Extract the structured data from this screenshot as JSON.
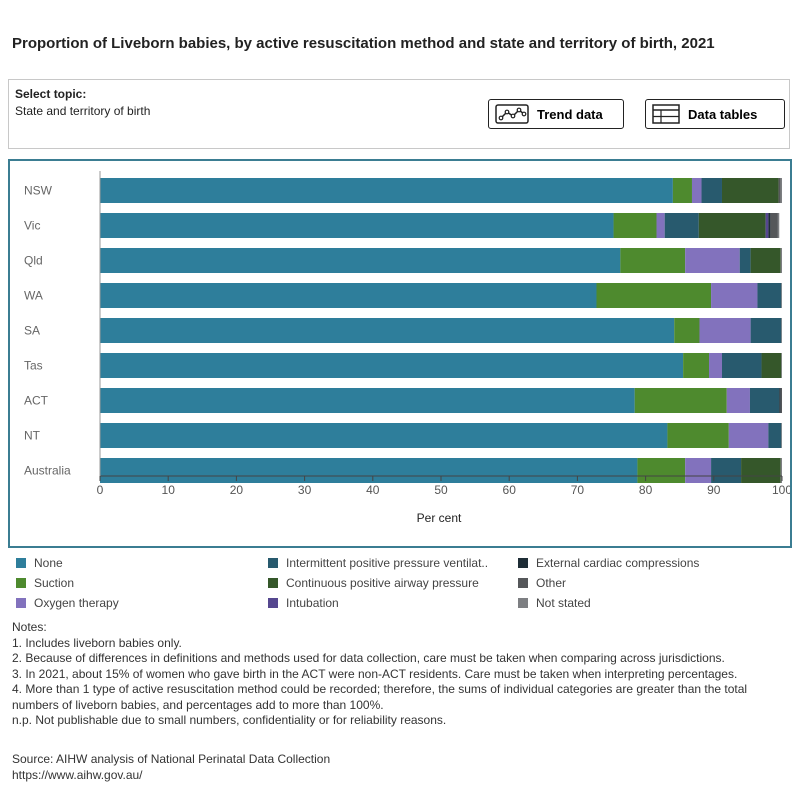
{
  "title": "Proportion of Liveborn babies, by active resuscitation method and state and territory of birth, 2021",
  "topic": {
    "label": "Select topic:",
    "value": "State and territory of birth"
  },
  "buttons": {
    "trend_label": "Trend data",
    "tables_label": "Data tables"
  },
  "chart_data": {
    "type": "bar",
    "orientation": "horizontal",
    "stacked": true,
    "categories": [
      "NSW",
      "Vic",
      "Qld",
      "WA",
      "SA",
      "Tas",
      "ACT",
      "NT",
      "Australia"
    ],
    "xlabel": "Per cent",
    "ylabel": "",
    "xlim": [
      0,
      100
    ],
    "xticks": [
      0,
      10,
      20,
      30,
      40,
      50,
      60,
      70,
      80,
      90,
      100
    ],
    "grid": false,
    "legend_position": "bottom",
    "series": [
      {
        "name": "None",
        "color": "#2e7e9b",
        "values": [
          84.0,
          75.3,
          76.3,
          72.8,
          84.2,
          85.5,
          78.4,
          83.2,
          78.8
        ]
      },
      {
        "name": "Suction",
        "color": "#4e8a2e",
        "values": [
          2.8,
          6.3,
          9.5,
          16.8,
          3.7,
          3.8,
          13.5,
          9.0,
          7.0
        ]
      },
      {
        "name": "Oxygen therapy",
        "color": "#8272bd",
        "values": [
          1.4,
          1.2,
          8.0,
          6.8,
          7.5,
          1.9,
          3.4,
          5.8,
          3.8
        ]
      },
      {
        "name": "Intermittent positive pressure ventilat..",
        "color": "#285a6e",
        "values": [
          3.0,
          5.0,
          1.6,
          3.5,
          4.5,
          5.8,
          4.3,
          1.9,
          4.4
        ]
      },
      {
        "name": "Continuous positive airway pressure",
        "color": "#35572a",
        "values": [
          8.3,
          9.8,
          4.4,
          0.0,
          0.0,
          2.9,
          0.0,
          0.0,
          5.8
        ]
      },
      {
        "name": "Intubation",
        "color": "#55478f",
        "values": [
          0.0,
          0.4,
          0.0,
          0.0,
          0.0,
          0.0,
          0.0,
          0.0,
          0.0
        ]
      },
      {
        "name": "External cardiac compressions",
        "color": "#1e2d36",
        "values": [
          0.0,
          0.3,
          0.0,
          0.0,
          0.0,
          0.0,
          0.2,
          0.0,
          0.0
        ]
      },
      {
        "name": "Other",
        "color": "#55575a",
        "values": [
          0.3,
          1.1,
          0.0,
          0.0,
          0.0,
          0.0,
          0.2,
          0.0,
          0.0
        ]
      },
      {
        "name": "Not stated",
        "color": "#7d7f82",
        "values": [
          0.2,
          0.2,
          0.2,
          0.1,
          0.1,
          0.1,
          0.0,
          0.1,
          0.2
        ]
      }
    ]
  },
  "legend": [
    {
      "label": "None",
      "color": "#2e7e9b"
    },
    {
      "label": "Intermittent positive pressure ventilat..",
      "color": "#285a6e"
    },
    {
      "label": "External cardiac compressions",
      "color": "#1e2d36"
    },
    {
      "label": "Suction",
      "color": "#4e8a2e"
    },
    {
      "label": "Continuous positive airway pressure",
      "color": "#35572a"
    },
    {
      "label": "Other",
      "color": "#55575a"
    },
    {
      "label": "Oxygen therapy",
      "color": "#8272bd"
    },
    {
      "label": "Intubation",
      "color": "#55478f"
    },
    {
      "label": "Not stated",
      "color": "#7d7f82"
    }
  ],
  "notes": {
    "heading": "Notes:",
    "items": [
      "1. Includes liveborn babies only.",
      "2. Because of differences in definitions and methods used for data collection, care must be taken when comparing across jurisdictions.",
      "3. In 2021, about 15% of women who gave birth in the ACT were non-ACT residents. Care must be taken when interpreting percentages.",
      "4. More than 1 type of active resuscitation method could be recorded; therefore, the sums of individual categories are greater than the total numbers of liveborn babies, and percentages add to more than 100%.",
      "n.p. Not publishable due to small numbers, confidentiality or for reliability reasons."
    ]
  },
  "source": {
    "text": "Source: AIHW analysis of National Perinatal Data Collection",
    "url": "https://www.aihw.gov.au/"
  }
}
